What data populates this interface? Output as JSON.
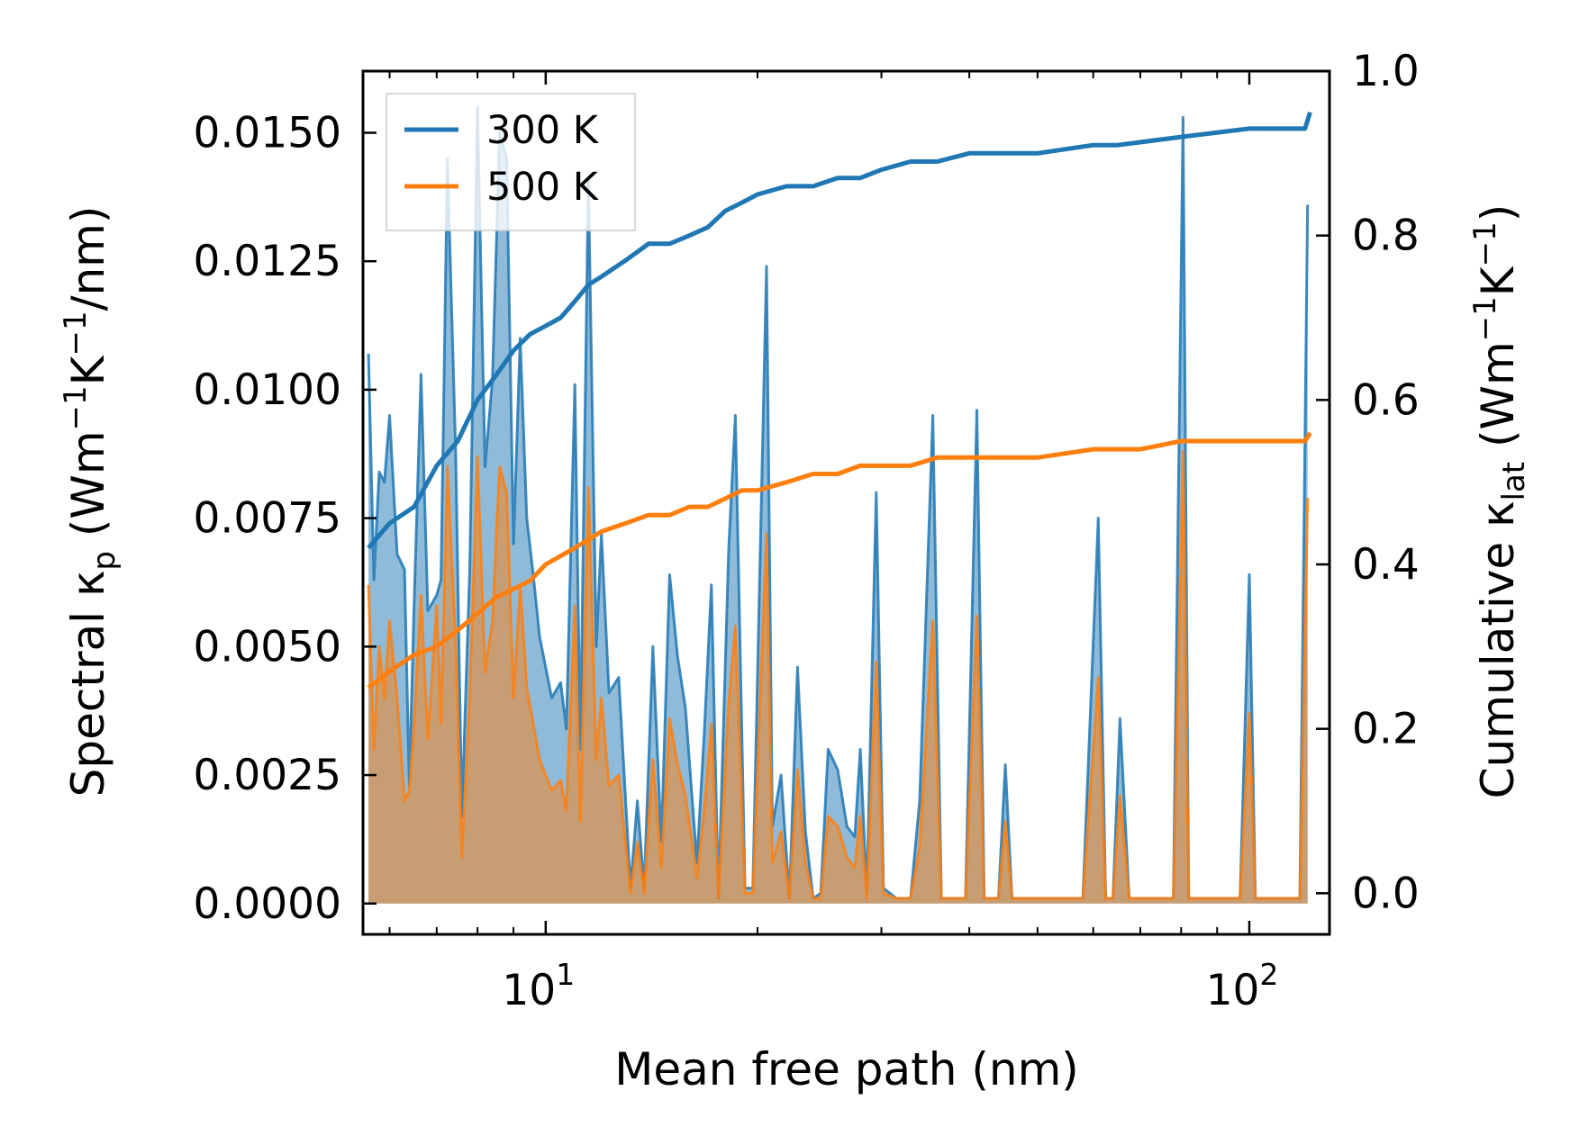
{
  "chart_data": {
    "type": "line",
    "xlabel": "Mean free path (nm)",
    "ylabel_left": {
      "prefix": "Spectral κ",
      "sub": "p",
      "mid": " (Wm",
      "sup1": "−1",
      "mid2": "K",
      "sup2": "−1",
      "suffix": "/nm)"
    },
    "ylabel_right": {
      "prefix": "Cumulative κ",
      "sub": "lat",
      "mid": " (Wm",
      "sup1": "−1",
      "mid2": "K",
      "sup2": "−1",
      "suffix": ")"
    },
    "x_scale": "log",
    "xlim": [
      5.5,
      130
    ],
    "ylim_left": [
      -0.0006,
      0.0162
    ],
    "ylim_right": [
      -0.05,
      1.0
    ],
    "x_ticks": [
      {
        "value": 10,
        "base": "10",
        "exp": "1"
      },
      {
        "value": 100,
        "base": "10",
        "exp": "2"
      }
    ],
    "y_ticks_left": [
      {
        "value": 0.0,
        "label": "0.0000"
      },
      {
        "value": 0.0025,
        "label": "0.0025"
      },
      {
        "value": 0.005,
        "label": "0.0050"
      },
      {
        "value": 0.0075,
        "label": "0.0075"
      },
      {
        "value": 0.01,
        "label": "0.0100"
      },
      {
        "value": 0.0125,
        "label": "0.0125"
      },
      {
        "value": 0.015,
        "label": "0.0150"
      }
    ],
    "y_ticks_right": [
      {
        "value": 0.0,
        "label": "0.0"
      },
      {
        "value": 0.2,
        "label": "0.2"
      },
      {
        "value": 0.4,
        "label": "0.4"
      },
      {
        "value": 0.6,
        "label": "0.6"
      },
      {
        "value": 0.8,
        "label": "0.8"
      },
      {
        "value": 1.0,
        "label": "1.0"
      }
    ],
    "legend": {
      "position": "top-left"
    },
    "series": [
      {
        "name": "300 K",
        "color": "#1f77b4",
        "fill_color": "#1f77b4",
        "spectral": [
          [
            5.6,
            0.0107
          ],
          [
            5.7,
            0.0063
          ],
          [
            5.8,
            0.0084
          ],
          [
            5.9,
            0.0082
          ],
          [
            6.0,
            0.0095
          ],
          [
            6.15,
            0.0068
          ],
          [
            6.3,
            0.0065
          ],
          [
            6.4,
            0.0023
          ],
          [
            6.5,
            0.0058
          ],
          [
            6.65,
            0.0103
          ],
          [
            6.8,
            0.0057
          ],
          [
            7.0,
            0.006
          ],
          [
            7.1,
            0.0063
          ],
          [
            7.25,
            0.0145
          ],
          [
            7.45,
            0.0087
          ],
          [
            7.6,
            0.0017
          ],
          [
            7.8,
            0.0065
          ],
          [
            8.0,
            0.0155
          ],
          [
            8.2,
            0.0085
          ],
          [
            8.4,
            0.0102
          ],
          [
            8.6,
            0.015
          ],
          [
            8.8,
            0.0145
          ],
          [
            9.0,
            0.007
          ],
          [
            9.2,
            0.011
          ],
          [
            9.4,
            0.0075
          ],
          [
            9.6,
            0.0064
          ],
          [
            9.8,
            0.0052
          ],
          [
            10.2,
            0.004
          ],
          [
            10.5,
            0.0043
          ],
          [
            10.7,
            0.0034
          ],
          [
            11.0,
            0.0101
          ],
          [
            11.2,
            0.003
          ],
          [
            11.5,
            0.0141
          ],
          [
            11.8,
            0.005
          ],
          [
            12.0,
            0.0072
          ],
          [
            12.3,
            0.0041
          ],
          [
            12.7,
            0.0044
          ],
          [
            13.2,
            0.0003
          ],
          [
            13.5,
            0.002
          ],
          [
            13.8,
            0.0003
          ],
          [
            14.2,
            0.005
          ],
          [
            14.6,
            0.0012
          ],
          [
            15.0,
            0.0064
          ],
          [
            15.4,
            0.0048
          ],
          [
            15.8,
            0.0038
          ],
          [
            16.4,
            0.0008
          ],
          [
            16.8,
            0.0033
          ],
          [
            17.2,
            0.0062
          ],
          [
            17.6,
            0.0001
          ],
          [
            18.2,
            0.0069
          ],
          [
            18.6,
            0.0095
          ],
          [
            19.2,
            0.0003
          ],
          [
            19.7,
            0.0003
          ],
          [
            20.6,
            0.0124
          ],
          [
            21.0,
            0.0015
          ],
          [
            21.6,
            0.0025
          ],
          [
            22.2,
            0.0001
          ],
          [
            22.8,
            0.0046
          ],
          [
            23.4,
            0.0014
          ],
          [
            24.0,
            0.0001
          ],
          [
            24.6,
            0.0002
          ],
          [
            25.2,
            0.003
          ],
          [
            26.0,
            0.0026
          ],
          [
            26.8,
            0.0015
          ],
          [
            27.5,
            0.0013
          ],
          [
            28.0,
            0.003
          ],
          [
            28.6,
            0.0002
          ],
          [
            29.5,
            0.008
          ],
          [
            30.2,
            0.0003
          ],
          [
            31.5,
            0.0001
          ],
          [
            33.0,
            0.0001
          ],
          [
            34.0,
            0.002
          ],
          [
            35.5,
            0.0095
          ],
          [
            36.5,
            0.0001
          ],
          [
            39.5,
            0.0001
          ],
          [
            41.0,
            0.0096
          ],
          [
            42.0,
            0.0001
          ],
          [
            44.0,
            0.0001
          ],
          [
            45.0,
            0.0027
          ],
          [
            46.0,
            0.0001
          ],
          [
            58.0,
            0.0001
          ],
          [
            61.0,
            0.0075
          ],
          [
            62.5,
            0.0001
          ],
          [
            64.0,
            0.0001
          ],
          [
            65.5,
            0.0036
          ],
          [
            67.5,
            0.0001
          ],
          [
            78.0,
            0.0001
          ],
          [
            80.5,
            0.0153
          ],
          [
            82.0,
            0.0001
          ],
          [
            97.0,
            0.0001
          ],
          [
            100.0,
            0.0064
          ],
          [
            102.0,
            0.0001
          ],
          [
            118.0,
            0.0001
          ],
          [
            121.0,
            0.0136
          ]
        ],
        "cumulative": [
          [
            5.6,
            0.42
          ],
          [
            6.0,
            0.45
          ],
          [
            6.5,
            0.47
          ],
          [
            7.0,
            0.52
          ],
          [
            7.5,
            0.55
          ],
          [
            8.0,
            0.6
          ],
          [
            8.5,
            0.63
          ],
          [
            9.0,
            0.66
          ],
          [
            9.5,
            0.68
          ],
          [
            10.0,
            0.69
          ],
          [
            10.5,
            0.7
          ],
          [
            11.0,
            0.72
          ],
          [
            11.5,
            0.74
          ],
          [
            12.0,
            0.75
          ],
          [
            13.0,
            0.77
          ],
          [
            14.0,
            0.79
          ],
          [
            15.0,
            0.79
          ],
          [
            16.0,
            0.8
          ],
          [
            17.0,
            0.81
          ],
          [
            18.0,
            0.83
          ],
          [
            19.0,
            0.84
          ],
          [
            20.0,
            0.85
          ],
          [
            22.0,
            0.86
          ],
          [
            24.0,
            0.86
          ],
          [
            26.0,
            0.87
          ],
          [
            28.0,
            0.87
          ],
          [
            30.0,
            0.88
          ],
          [
            33.0,
            0.89
          ],
          [
            36.0,
            0.89
          ],
          [
            40.0,
            0.9
          ],
          [
            45.0,
            0.9
          ],
          [
            50.0,
            0.9
          ],
          [
            60.0,
            0.91
          ],
          [
            65.0,
            0.91
          ],
          [
            80.0,
            0.92
          ],
          [
            100.0,
            0.93
          ],
          [
            120.0,
            0.93
          ],
          [
            122.0,
            0.95
          ]
        ]
      },
      {
        "name": "500 K",
        "color": "#ff7f0e",
        "fill_color": "#ff7f0e",
        "spectral": [
          [
            5.6,
            0.0062
          ],
          [
            5.7,
            0.003
          ],
          [
            5.8,
            0.005
          ],
          [
            5.9,
            0.004
          ],
          [
            6.0,
            0.0055
          ],
          [
            6.15,
            0.004
          ],
          [
            6.3,
            0.002
          ],
          [
            6.4,
            0.0022
          ],
          [
            6.5,
            0.0035
          ],
          [
            6.65,
            0.006
          ],
          [
            6.8,
            0.0032
          ],
          [
            7.0,
            0.0058
          ],
          [
            7.1,
            0.0035
          ],
          [
            7.25,
            0.0085
          ],
          [
            7.45,
            0.005
          ],
          [
            7.6,
            0.0009
          ],
          [
            7.8,
            0.004
          ],
          [
            8.0,
            0.0087
          ],
          [
            8.2,
            0.0045
          ],
          [
            8.4,
            0.0055
          ],
          [
            8.6,
            0.0085
          ],
          [
            8.8,
            0.008
          ],
          [
            9.0,
            0.004
          ],
          [
            9.2,
            0.0062
          ],
          [
            9.4,
            0.0042
          ],
          [
            9.6,
            0.0035
          ],
          [
            9.8,
            0.0028
          ],
          [
            10.2,
            0.0022
          ],
          [
            10.5,
            0.0024
          ],
          [
            10.7,
            0.0018
          ],
          [
            11.0,
            0.0058
          ],
          [
            11.2,
            0.0016
          ],
          [
            11.5,
            0.0081
          ],
          [
            11.8,
            0.0028
          ],
          [
            12.0,
            0.004
          ],
          [
            12.3,
            0.0023
          ],
          [
            12.7,
            0.0025
          ],
          [
            13.2,
            0.0002
          ],
          [
            13.5,
            0.0012
          ],
          [
            13.8,
            0.0002
          ],
          [
            14.2,
            0.0028
          ],
          [
            14.6,
            0.0007
          ],
          [
            15.0,
            0.0036
          ],
          [
            15.4,
            0.0027
          ],
          [
            15.8,
            0.0021
          ],
          [
            16.4,
            0.0005
          ],
          [
            16.8,
            0.0018
          ],
          [
            17.2,
            0.0035
          ],
          [
            17.6,
            0.0001
          ],
          [
            18.2,
            0.0039
          ],
          [
            18.6,
            0.0054
          ],
          [
            19.2,
            0.0002
          ],
          [
            19.7,
            0.0002
          ],
          [
            20.6,
            0.0072
          ],
          [
            21.0,
            0.0008
          ],
          [
            21.6,
            0.0014
          ],
          [
            22.2,
            0.0001
          ],
          [
            22.8,
            0.0026
          ],
          [
            23.4,
            0.0008
          ],
          [
            24.0,
            0.0001
          ],
          [
            24.6,
            0.0001
          ],
          [
            25.2,
            0.0017
          ],
          [
            26.0,
            0.0015
          ],
          [
            26.8,
            0.0009
          ],
          [
            27.5,
            0.0007
          ],
          [
            28.0,
            0.0017
          ],
          [
            28.6,
            0.0001
          ],
          [
            29.5,
            0.0047
          ],
          [
            30.2,
            0.0002
          ],
          [
            31.5,
            0.0001
          ],
          [
            33.0,
            0.0001
          ],
          [
            34.0,
            0.0011
          ],
          [
            35.5,
            0.0055
          ],
          [
            36.5,
            0.0001
          ],
          [
            39.5,
            0.0001
          ],
          [
            41.0,
            0.0056
          ],
          [
            42.0,
            0.0001
          ],
          [
            44.0,
            0.0001
          ],
          [
            45.0,
            0.0016
          ],
          [
            46.0,
            0.0001
          ],
          [
            58.0,
            0.0001
          ],
          [
            61.0,
            0.0044
          ],
          [
            62.5,
            0.0001
          ],
          [
            64.0,
            0.0001
          ],
          [
            65.5,
            0.0021
          ],
          [
            67.5,
            0.0001
          ],
          [
            78.0,
            0.0001
          ],
          [
            80.5,
            0.0088
          ],
          [
            82.0,
            0.0001
          ],
          [
            97.0,
            0.0001
          ],
          [
            100.0,
            0.0037
          ],
          [
            102.0,
            0.0001
          ],
          [
            118.0,
            0.0001
          ],
          [
            121.0,
            0.0079
          ]
        ],
        "cumulative": [
          [
            5.6,
            0.25
          ],
          [
            6.0,
            0.27
          ],
          [
            6.5,
            0.29
          ],
          [
            7.0,
            0.3
          ],
          [
            7.5,
            0.32
          ],
          [
            8.0,
            0.34
          ],
          [
            8.5,
            0.36
          ],
          [
            9.0,
            0.37
          ],
          [
            9.5,
            0.38
          ],
          [
            10.0,
            0.4
          ],
          [
            11.0,
            0.42
          ],
          [
            12.0,
            0.44
          ],
          [
            13.0,
            0.45
          ],
          [
            14.0,
            0.46
          ],
          [
            15.0,
            0.46
          ],
          [
            16.0,
            0.47
          ],
          [
            17.0,
            0.47
          ],
          [
            18.0,
            0.48
          ],
          [
            19.0,
            0.49
          ],
          [
            20.0,
            0.49
          ],
          [
            22.0,
            0.5
          ],
          [
            24.0,
            0.51
          ],
          [
            26.0,
            0.51
          ],
          [
            28.0,
            0.52
          ],
          [
            30.0,
            0.52
          ],
          [
            33.0,
            0.52
          ],
          [
            36.0,
            0.53
          ],
          [
            40.0,
            0.53
          ],
          [
            45.0,
            0.53
          ],
          [
            50.0,
            0.53
          ],
          [
            60.0,
            0.54
          ],
          [
            70.0,
            0.54
          ],
          [
            80.0,
            0.55
          ],
          [
            100.0,
            0.55
          ],
          [
            120.0,
            0.55
          ],
          [
            122.0,
            0.56
          ]
        ]
      }
    ]
  }
}
